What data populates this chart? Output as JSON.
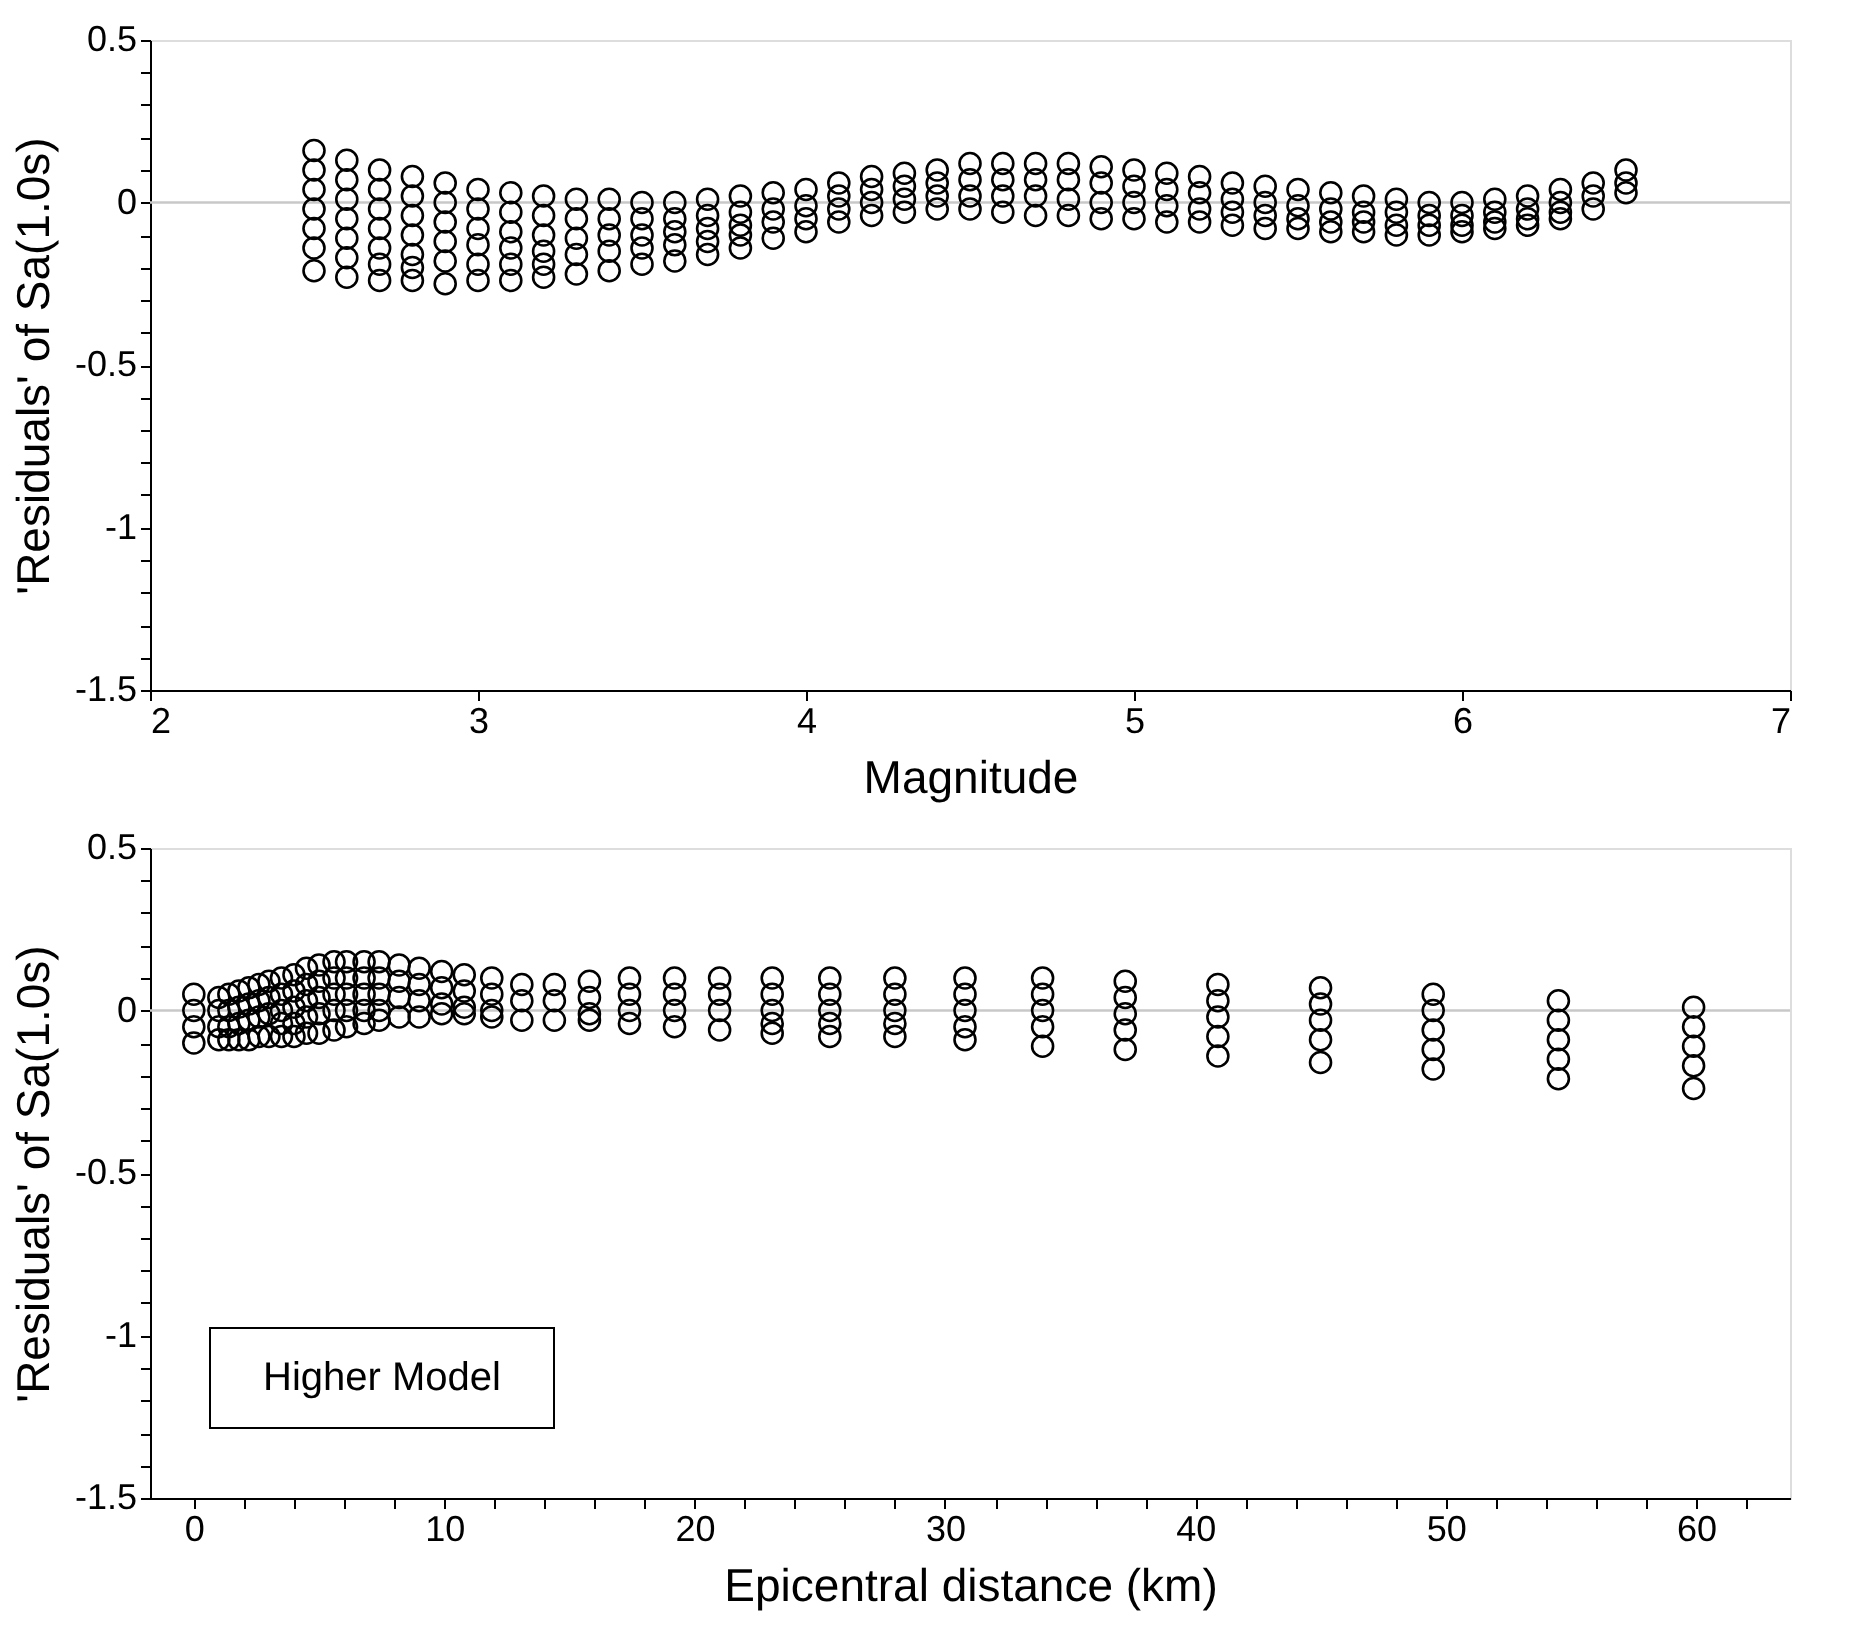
{
  "chart_data": [
    {
      "type": "scatter",
      "xlabel": "Magnitude",
      "ylabel": "'Residuals' of Sa(1.0s)",
      "marker": "circle",
      "grid": false,
      "xlim": [
        2,
        7
      ],
      "xticks": [
        2,
        3,
        4,
        5,
        6,
        7
      ],
      "ylim": [
        -1.5,
        0.5
      ],
      "yticks": [
        -1.5,
        {
          "value": -1.4,
          "label": null
        },
        {
          "value": -1.3,
          "label": null
        },
        {
          "value": -1.2,
          "label": null
        },
        {
          "value": -1.1,
          "label": null
        },
        -1,
        {
          "value": -0.9,
          "label": null
        },
        {
          "value": -0.8,
          "label": null
        },
        {
          "value": -0.7,
          "label": null
        },
        {
          "value": -0.6,
          "label": null
        },
        -0.5,
        {
          "value": -0.4,
          "label": null
        },
        {
          "value": -0.3,
          "label": null
        },
        {
          "value": -0.2,
          "label": null
        },
        {
          "value": -0.1,
          "label": null
        },
        0,
        {
          "value": 0.1,
          "label": null
        },
        {
          "value": 0.2,
          "label": null
        },
        {
          "value": 0.3,
          "label": null
        },
        {
          "value": 0.4,
          "label": null
        },
        0.5
      ],
      "ref_lines": [
        {
          "axis": "y",
          "value": 0,
          "color": "#c8c8c8"
        }
      ],
      "series": [
        {
          "color": "#000000",
          "x": [
            2.5,
            2.5,
            2.5,
            2.5,
            2.5,
            2.5,
            2.5,
            2.6,
            2.6,
            2.6,
            2.6,
            2.6,
            2.6,
            2.6,
            2.7,
            2.7,
            2.7,
            2.7,
            2.7,
            2.7,
            2.7,
            2.8,
            2.8,
            2.8,
            2.8,
            2.8,
            2.8,
            2.8,
            2.9,
            2.9,
            2.9,
            2.9,
            2.9,
            2.9,
            3.0,
            3.0,
            3.0,
            3.0,
            3.0,
            3.0,
            3.1,
            3.1,
            3.1,
            3.1,
            3.1,
            3.1,
            3.2,
            3.2,
            3.2,
            3.2,
            3.2,
            3.2,
            3.3,
            3.3,
            3.3,
            3.3,
            3.3,
            3.4,
            3.4,
            3.4,
            3.4,
            3.4,
            3.5,
            3.5,
            3.5,
            3.5,
            3.5,
            3.6,
            3.6,
            3.6,
            3.6,
            3.6,
            3.7,
            3.7,
            3.7,
            3.7,
            3.7,
            3.8,
            3.8,
            3.8,
            3.8,
            3.8,
            3.9,
            3.9,
            3.9,
            3.9,
            4.0,
            4.0,
            4.0,
            4.0,
            4.1,
            4.1,
            4.1,
            4.1,
            4.2,
            4.2,
            4.2,
            4.2,
            4.3,
            4.3,
            4.3,
            4.3,
            4.4,
            4.4,
            4.4,
            4.4,
            4.5,
            4.5,
            4.5,
            4.5,
            4.6,
            4.6,
            4.6,
            4.6,
            4.7,
            4.7,
            4.7,
            4.7,
            4.8,
            4.8,
            4.8,
            4.8,
            4.9,
            4.9,
            4.9,
            4.9,
            5.0,
            5.0,
            5.0,
            5.0,
            5.1,
            5.1,
            5.1,
            5.1,
            5.2,
            5.2,
            5.2,
            5.2,
            5.3,
            5.3,
            5.3,
            5.3,
            5.4,
            5.4,
            5.4,
            5.4,
            5.5,
            5.5,
            5.5,
            5.5,
            5.6,
            5.6,
            5.6,
            5.6,
            5.7,
            5.7,
            5.7,
            5.7,
            5.8,
            5.8,
            5.8,
            5.8,
            5.9,
            5.9,
            5.9,
            5.9,
            6.0,
            6.0,
            6.0,
            6.0,
            6.1,
            6.1,
            6.1,
            6.1,
            6.2,
            6.2,
            6.2,
            6.2,
            6.3,
            6.3,
            6.3,
            6.3,
            6.4,
            6.4,
            6.4,
            6.5,
            6.5,
            6.5
          ],
          "values": [
            0.16,
            0.1,
            0.04,
            -0.02,
            -0.08,
            -0.14,
            -0.21,
            0.13,
            0.07,
            0.01,
            -0.05,
            -0.11,
            -0.17,
            -0.23,
            0.1,
            0.04,
            -0.02,
            -0.08,
            -0.14,
            -0.19,
            -0.24,
            0.08,
            0.02,
            -0.04,
            -0.1,
            -0.16,
            -0.2,
            -0.24,
            0.06,
            0.0,
            -0.06,
            -0.12,
            -0.18,
            -0.25,
            0.04,
            -0.02,
            -0.08,
            -0.13,
            -0.19,
            -0.24,
            0.03,
            -0.03,
            -0.09,
            -0.14,
            -0.19,
            -0.24,
            0.02,
            -0.04,
            -0.1,
            -0.15,
            -0.19,
            -0.23,
            0.01,
            -0.05,
            -0.11,
            -0.16,
            -0.22,
            0.01,
            -0.05,
            -0.1,
            -0.15,
            -0.21,
            0.0,
            -0.05,
            -0.1,
            -0.14,
            -0.19,
            0.0,
            -0.05,
            -0.09,
            -0.13,
            -0.18,
            0.01,
            -0.04,
            -0.08,
            -0.12,
            -0.16,
            0.02,
            -0.03,
            -0.07,
            -0.1,
            -0.14,
            0.03,
            -0.02,
            -0.06,
            -0.11,
            0.04,
            -0.01,
            -0.05,
            -0.09,
            0.06,
            0.02,
            -0.02,
            -0.06,
            0.08,
            0.04,
            0.0,
            -0.04,
            0.09,
            0.05,
            0.01,
            -0.03,
            0.1,
            0.06,
            0.02,
            -0.02,
            0.12,
            0.07,
            0.02,
            -0.02,
            0.12,
            0.07,
            0.02,
            -0.03,
            0.12,
            0.07,
            0.02,
            -0.04,
            0.12,
            0.07,
            0.01,
            -0.04,
            0.11,
            0.06,
            0.0,
            -0.05,
            0.1,
            0.05,
            0.0,
            -0.05,
            0.09,
            0.04,
            -0.01,
            -0.06,
            0.08,
            0.03,
            -0.02,
            -0.06,
            0.06,
            0.01,
            -0.03,
            -0.07,
            0.05,
            0.0,
            -0.04,
            -0.08,
            0.04,
            -0.01,
            -0.05,
            -0.08,
            0.03,
            -0.02,
            -0.06,
            -0.09,
            0.02,
            -0.03,
            -0.06,
            -0.09,
            0.01,
            -0.03,
            -0.07,
            -0.1,
            0.0,
            -0.04,
            -0.07,
            -0.1,
            0.0,
            -0.04,
            -0.07,
            -0.09,
            0.01,
            -0.03,
            -0.06,
            -0.08,
            0.02,
            -0.02,
            -0.05,
            -0.07,
            0.04,
            0.0,
            -0.03,
            -0.05,
            0.06,
            0.02,
            -0.02,
            0.1,
            0.06,
            0.03
          ]
        }
      ]
    },
    {
      "type": "scatter",
      "xlabel": "Epicentral distance (km)",
      "ylabel": "'Residuals' of Sa(1.0s)",
      "marker": "circle",
      "grid": false,
      "annotations": [
        "Higher Model"
      ],
      "xlim": [
        -1.75,
        63.75
      ],
      "xticks": [
        0,
        {
          "value": 2,
          "label": null
        },
        {
          "value": 4,
          "label": null
        },
        {
          "value": 6,
          "label": null
        },
        {
          "value": 8,
          "label": null
        },
        10,
        {
          "value": 12,
          "label": null
        },
        {
          "value": 14,
          "label": null
        },
        {
          "value": 16,
          "label": null
        },
        {
          "value": 18,
          "label": null
        },
        20,
        {
          "value": 22,
          "label": null
        },
        {
          "value": 24,
          "label": null
        },
        {
          "value": 26,
          "label": null
        },
        {
          "value": 28,
          "label": null
        },
        30,
        {
          "value": 32,
          "label": null
        },
        {
          "value": 34,
          "label": null
        },
        {
          "value": 36,
          "label": null
        },
        {
          "value": 38,
          "label": null
        },
        40,
        {
          "value": 42,
          "label": null
        },
        {
          "value": 44,
          "label": null
        },
        {
          "value": 46,
          "label": null
        },
        {
          "value": 48,
          "label": null
        },
        50,
        {
          "value": 52,
          "label": null
        },
        {
          "value": 54,
          "label": null
        },
        {
          "value": 56,
          "label": null
        },
        {
          "value": 58,
          "label": null
        },
        60,
        {
          "value": 62,
          "label": null
        }
      ],
      "ylim": [
        -1.5,
        0.5
      ],
      "yticks": [
        -1.5,
        {
          "value": -1.4,
          "label": null
        },
        {
          "value": -1.3,
          "label": null
        },
        {
          "value": -1.2,
          "label": null
        },
        {
          "value": -1.1,
          "label": null
        },
        -1,
        {
          "value": -0.9,
          "label": null
        },
        {
          "value": -0.8,
          "label": null
        },
        {
          "value": -0.7,
          "label": null
        },
        {
          "value": -0.6,
          "label": null
        },
        -0.5,
        {
          "value": -0.4,
          "label": null
        },
        {
          "value": -0.3,
          "label": null
        },
        {
          "value": -0.2,
          "label": null
        },
        {
          "value": -0.1,
          "label": null
        },
        0,
        {
          "value": 0.1,
          "label": null
        },
        {
          "value": 0.2,
          "label": null
        },
        {
          "value": 0.3,
          "label": null
        },
        {
          "value": 0.4,
          "label": null
        },
        0.5
      ],
      "ref_lines": [
        {
          "axis": "y",
          "value": 0,
          "color": "#c8c8c8"
        }
      ],
      "series": [
        {
          "color": "#000000",
          "x": [
            0,
            0,
            0,
            0,
            1.0,
            1.0,
            1.0,
            1.0,
            1.4,
            1.4,
            1.4,
            1.4,
            1.8,
            1.8,
            1.8,
            1.8,
            2.2,
            2.2,
            2.2,
            2.2,
            2.6,
            2.6,
            2.6,
            2.6,
            3.0,
            3.0,
            3.0,
            3.0,
            3.5,
            3.5,
            3.5,
            3.5,
            3.5,
            4.0,
            4.0,
            4.0,
            4.0,
            4.0,
            4.5,
            4.5,
            4.5,
            4.5,
            4.5,
            5.0,
            5.0,
            5.0,
            5.0,
            5.0,
            5.6,
            5.6,
            5.6,
            5.6,
            5.6,
            6.1,
            6.1,
            6.1,
            6.1,
            6.1,
            6.8,
            6.8,
            6.8,
            6.8,
            6.8,
            7.4,
            7.4,
            7.4,
            7.4,
            7.4,
            8.2,
            8.2,
            8.2,
            8.2,
            9.0,
            9.0,
            9.0,
            9.0,
            9.9,
            9.9,
            9.9,
            9.9,
            10.8,
            10.8,
            10.8,
            10.8,
            11.9,
            11.9,
            11.9,
            11.9,
            13.1,
            13.1,
            13.1,
            14.4,
            14.4,
            14.4,
            15.8,
            15.8,
            15.8,
            15.8,
            17.4,
            17.4,
            17.4,
            17.4,
            19.2,
            19.2,
            19.2,
            19.2,
            21.0,
            21.0,
            21.0,
            21.0,
            23.1,
            23.1,
            23.1,
            23.1,
            23.1,
            25.4,
            25.4,
            25.4,
            25.4,
            25.4,
            28.0,
            28.0,
            28.0,
            28.0,
            28.0,
            30.8,
            30.8,
            30.8,
            30.8,
            30.8,
            33.9,
            33.9,
            33.9,
            33.9,
            33.9,
            37.2,
            37.2,
            37.2,
            37.2,
            37.2,
            40.9,
            40.9,
            40.9,
            40.9,
            40.9,
            45.0,
            45.0,
            45.0,
            45.0,
            45.0,
            49.5,
            49.5,
            49.5,
            49.5,
            49.5,
            54.5,
            54.5,
            54.5,
            54.5,
            54.5,
            59.9,
            59.9,
            59.9,
            59.9,
            59.9
          ],
          "values": [
            0.05,
            0.0,
            -0.05,
            -0.1,
            0.04,
            0.0,
            -0.05,
            -0.09,
            0.05,
            0.0,
            -0.05,
            -0.09,
            0.06,
            0.01,
            -0.04,
            -0.09,
            0.07,
            0.02,
            -0.03,
            -0.09,
            0.08,
            0.03,
            -0.02,
            -0.08,
            0.09,
            0.04,
            -0.01,
            -0.08,
            0.1,
            0.05,
            0.0,
            -0.04,
            -0.08,
            0.11,
            0.06,
            0.01,
            -0.04,
            -0.08,
            0.13,
            0.08,
            0.03,
            -0.02,
            -0.07,
            0.14,
            0.09,
            0.04,
            -0.01,
            -0.07,
            0.15,
            0.1,
            0.05,
            0.0,
            -0.06,
            0.15,
            0.1,
            0.05,
            0.0,
            -0.05,
            0.15,
            0.1,
            0.05,
            0.0,
            -0.04,
            0.15,
            0.1,
            0.05,
            0.0,
            -0.03,
            0.14,
            0.09,
            0.04,
            -0.02,
            0.13,
            0.08,
            0.03,
            -0.02,
            0.12,
            0.07,
            0.02,
            -0.01,
            0.11,
            0.06,
            0.01,
            -0.01,
            0.1,
            0.05,
            0.0,
            -0.02,
            0.08,
            0.03,
            -0.03,
            0.08,
            0.03,
            -0.03,
            0.09,
            0.04,
            -0.01,
            -0.03,
            0.1,
            0.05,
            0.0,
            -0.04,
            0.1,
            0.05,
            0.0,
            -0.05,
            0.1,
            0.05,
            0.0,
            -0.06,
            0.1,
            0.05,
            0.0,
            -0.04,
            -0.07,
            0.1,
            0.05,
            0.0,
            -0.04,
            -0.08,
            0.1,
            0.05,
            0.0,
            -0.04,
            -0.08,
            0.1,
            0.05,
            0.0,
            -0.05,
            -0.09,
            0.1,
            0.05,
            0.0,
            -0.05,
            -0.11,
            0.09,
            0.04,
            -0.01,
            -0.06,
            -0.12,
            0.08,
            0.03,
            -0.02,
            -0.08,
            -0.14,
            0.07,
            0.02,
            -0.03,
            -0.09,
            -0.16,
            0.05,
            0.0,
            -0.06,
            -0.12,
            -0.18,
            0.03,
            -0.03,
            -0.09,
            -0.15,
            -0.21,
            0.01,
            -0.05,
            -0.11,
            -0.17,
            -0.24
          ]
        }
      ]
    }
  ]
}
